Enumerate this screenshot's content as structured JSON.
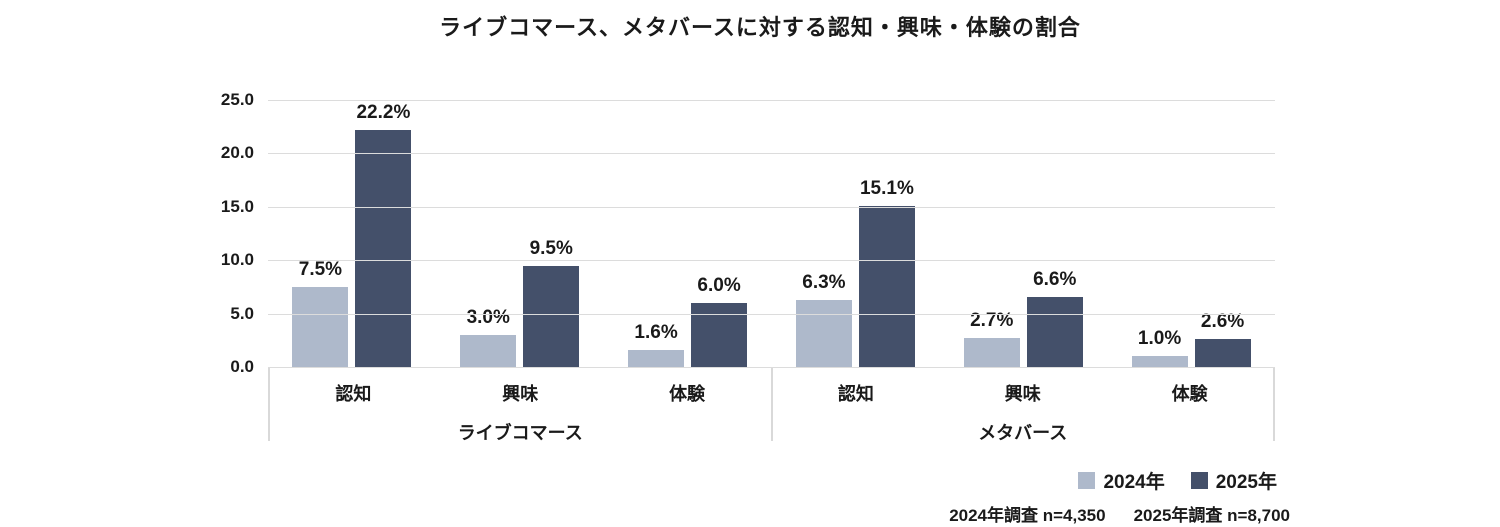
{
  "title": "ライブコマース、メタバースに対する認知・興味・体験の割合",
  "colors": {
    "series_2024": "#aeb9cb",
    "series_2025": "#44506a",
    "gridline": "#dcdcdc",
    "text": "#1a1a1a"
  },
  "chart_data": {
    "type": "bar",
    "title": "ライブコマース、メタバースに対する認知・興味・体験の割合",
    "ylim": [
      0,
      25
    ],
    "yticks": [
      "25.0",
      "20.0",
      "15.0",
      "10.0",
      "5.0",
      "0.0"
    ],
    "grid": true,
    "legend_position": "bottom-right",
    "groups": [
      {
        "label": "ライブコマース",
        "categories": [
          "認知",
          "興味",
          "体験"
        ]
      },
      {
        "label": "メタバース",
        "categories": [
          "認知",
          "興味",
          "体験"
        ]
      }
    ],
    "series": [
      {
        "name": "2024年",
        "color": "#aeb9cb",
        "values": [
          7.5,
          3.0,
          1.6,
          6.3,
          2.7,
          1.0
        ],
        "labels": [
          "7.5%",
          "3.0%",
          "1.6%",
          "6.3%",
          "2.7%",
          "1.0%"
        ]
      },
      {
        "name": "2025年",
        "color": "#44506a",
        "values": [
          22.2,
          9.5,
          6.0,
          15.1,
          6.6,
          2.6
        ],
        "labels": [
          "22.2%",
          "9.5%",
          "6.0%",
          "15.1%",
          "6.6%",
          "2.6%"
        ]
      }
    ]
  },
  "footnote": {
    "note_2024": "2024年調査 n=4,350",
    "note_2025": "2025年調査 n=8,700"
  }
}
